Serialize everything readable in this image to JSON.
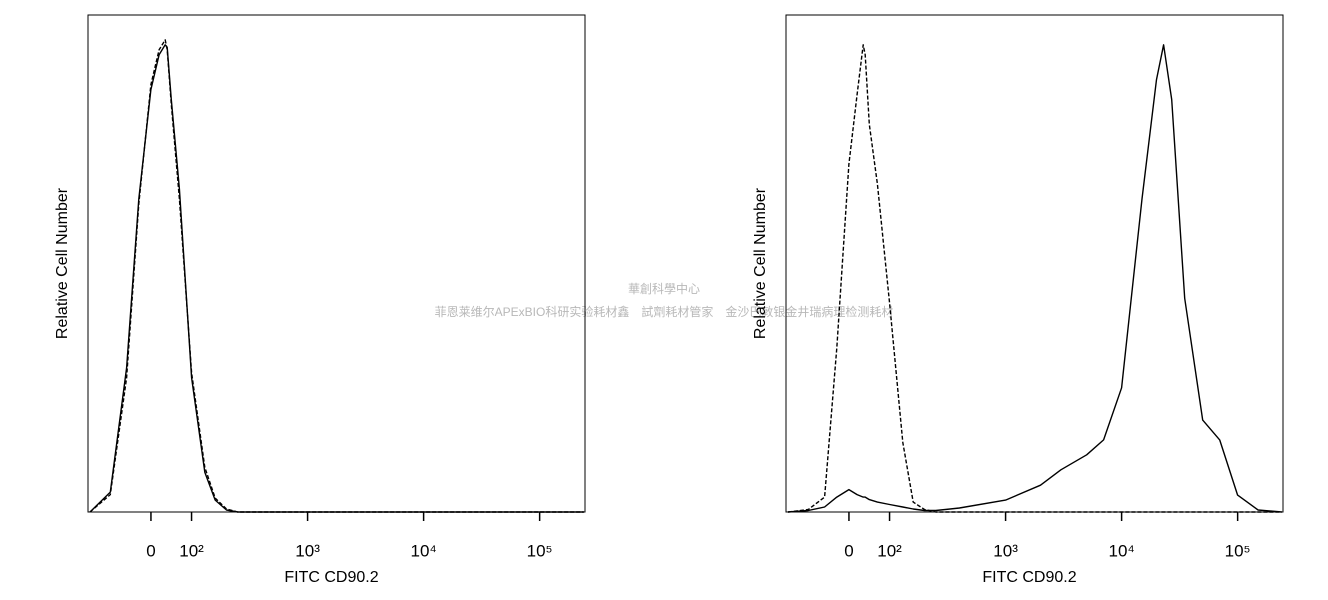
{
  "chart_data": [
    {
      "type": "line",
      "xscale": "biexponential",
      "xlabel": "FITC CD90.2",
      "ylabel": "Relative Cell Number",
      "x": [
        -150,
        -100,
        -60,
        -30,
        0,
        20,
        35,
        40,
        50,
        70,
        100,
        130,
        160,
        200,
        250,
        400,
        1000,
        2000,
        3000,
        5000,
        7000,
        10000,
        15000,
        20000,
        23000,
        27000,
        35000,
        50000,
        70000,
        100000,
        150000,
        240000
      ],
      "xlim": [
        -155,
        246000
      ],
      "xticks": [
        0,
        {
          "value": 100,
          "label": "10²"
        },
        {
          "value": 1000,
          "label": "10³"
        },
        {
          "value": 10000,
          "label": "10⁴"
        },
        {
          "value": 100000,
          "label": "10⁵"
        }
      ],
      "ylim": [
        0,
        100
      ],
      "series": [
        {
          "color": "#000000",
          "linestyle": "solid",
          "values": [
            0,
            4,
            29,
            63,
            85,
            92,
            94,
            93.5,
            83,
            65,
            27,
            8,
            2.4,
            0.4,
            0,
            0,
            0,
            0,
            0,
            0,
            0,
            0,
            0,
            0,
            0,
            0,
            0,
            0,
            0,
            0,
            0,
            0
          ]
        },
        {
          "color": "#000000",
          "linestyle": "dashed",
          "values": [
            0,
            3.5,
            27,
            62,
            86,
            93,
            95,
            93,
            82,
            63,
            28,
            9,
            2.8,
            0.6,
            0,
            0,
            0,
            0,
            0,
            0,
            0,
            0,
            0,
            0,
            0,
            0,
            0,
            0,
            0,
            0,
            0,
            0
          ]
        }
      ]
    },
    {
      "type": "line",
      "xscale": "biexponential",
      "xlabel": "FITC CD90.2",
      "ylabel": "Relative Cell Number",
      "x": [
        -150,
        -100,
        -60,
        -30,
        0,
        20,
        35,
        40,
        50,
        70,
        100,
        130,
        160,
        200,
        250,
        400,
        1000,
        2000,
        3000,
        5000,
        7000,
        10000,
        15000,
        20000,
        23000,
        27000,
        35000,
        50000,
        70000,
        100000,
        150000,
        240000
      ],
      "xlim": [
        -155,
        246000
      ],
      "xticks": [
        0,
        {
          "value": 100,
          "label": "10²"
        },
        {
          "value": 1000,
          "label": "10³"
        },
        {
          "value": 10000,
          "label": "10⁴"
        },
        {
          "value": 100000,
          "label": "10⁵"
        }
      ],
      "ylim": [
        0,
        100
      ],
      "series": [
        {
          "color": "#000000",
          "linestyle": "solid",
          "values": [
            0,
            0.3,
            1,
            3,
            4.5,
            3.5,
            3,
            3,
            2.5,
            2,
            1.5,
            1,
            0.6,
            0.3,
            0.3,
            0.8,
            2.4,
            5.4,
            8.5,
            11.5,
            14.5,
            25,
            63,
            87,
            94,
            83,
            43,
            18.5,
            14.5,
            3.4,
            0.4,
            0
          ]
        },
        {
          "color": "#000000",
          "linestyle": "dashed",
          "values": [
            0,
            0.5,
            3,
            33,
            70,
            84,
            94,
            92,
            78,
            66,
            42,
            14,
            2,
            0.5,
            0,
            0,
            0,
            0,
            0,
            0,
            0,
            0,
            0,
            0,
            0,
            0,
            0,
            0,
            0,
            0,
            0,
            0
          ]
        }
      ]
    }
  ],
  "watermark": [
    "華創科學中心",
    "菲恩莱维尔APExBIO科研实验耗材鑫　試劑耗材管家　金沙巴敦银金井瑞病理检测耗材"
  ]
}
